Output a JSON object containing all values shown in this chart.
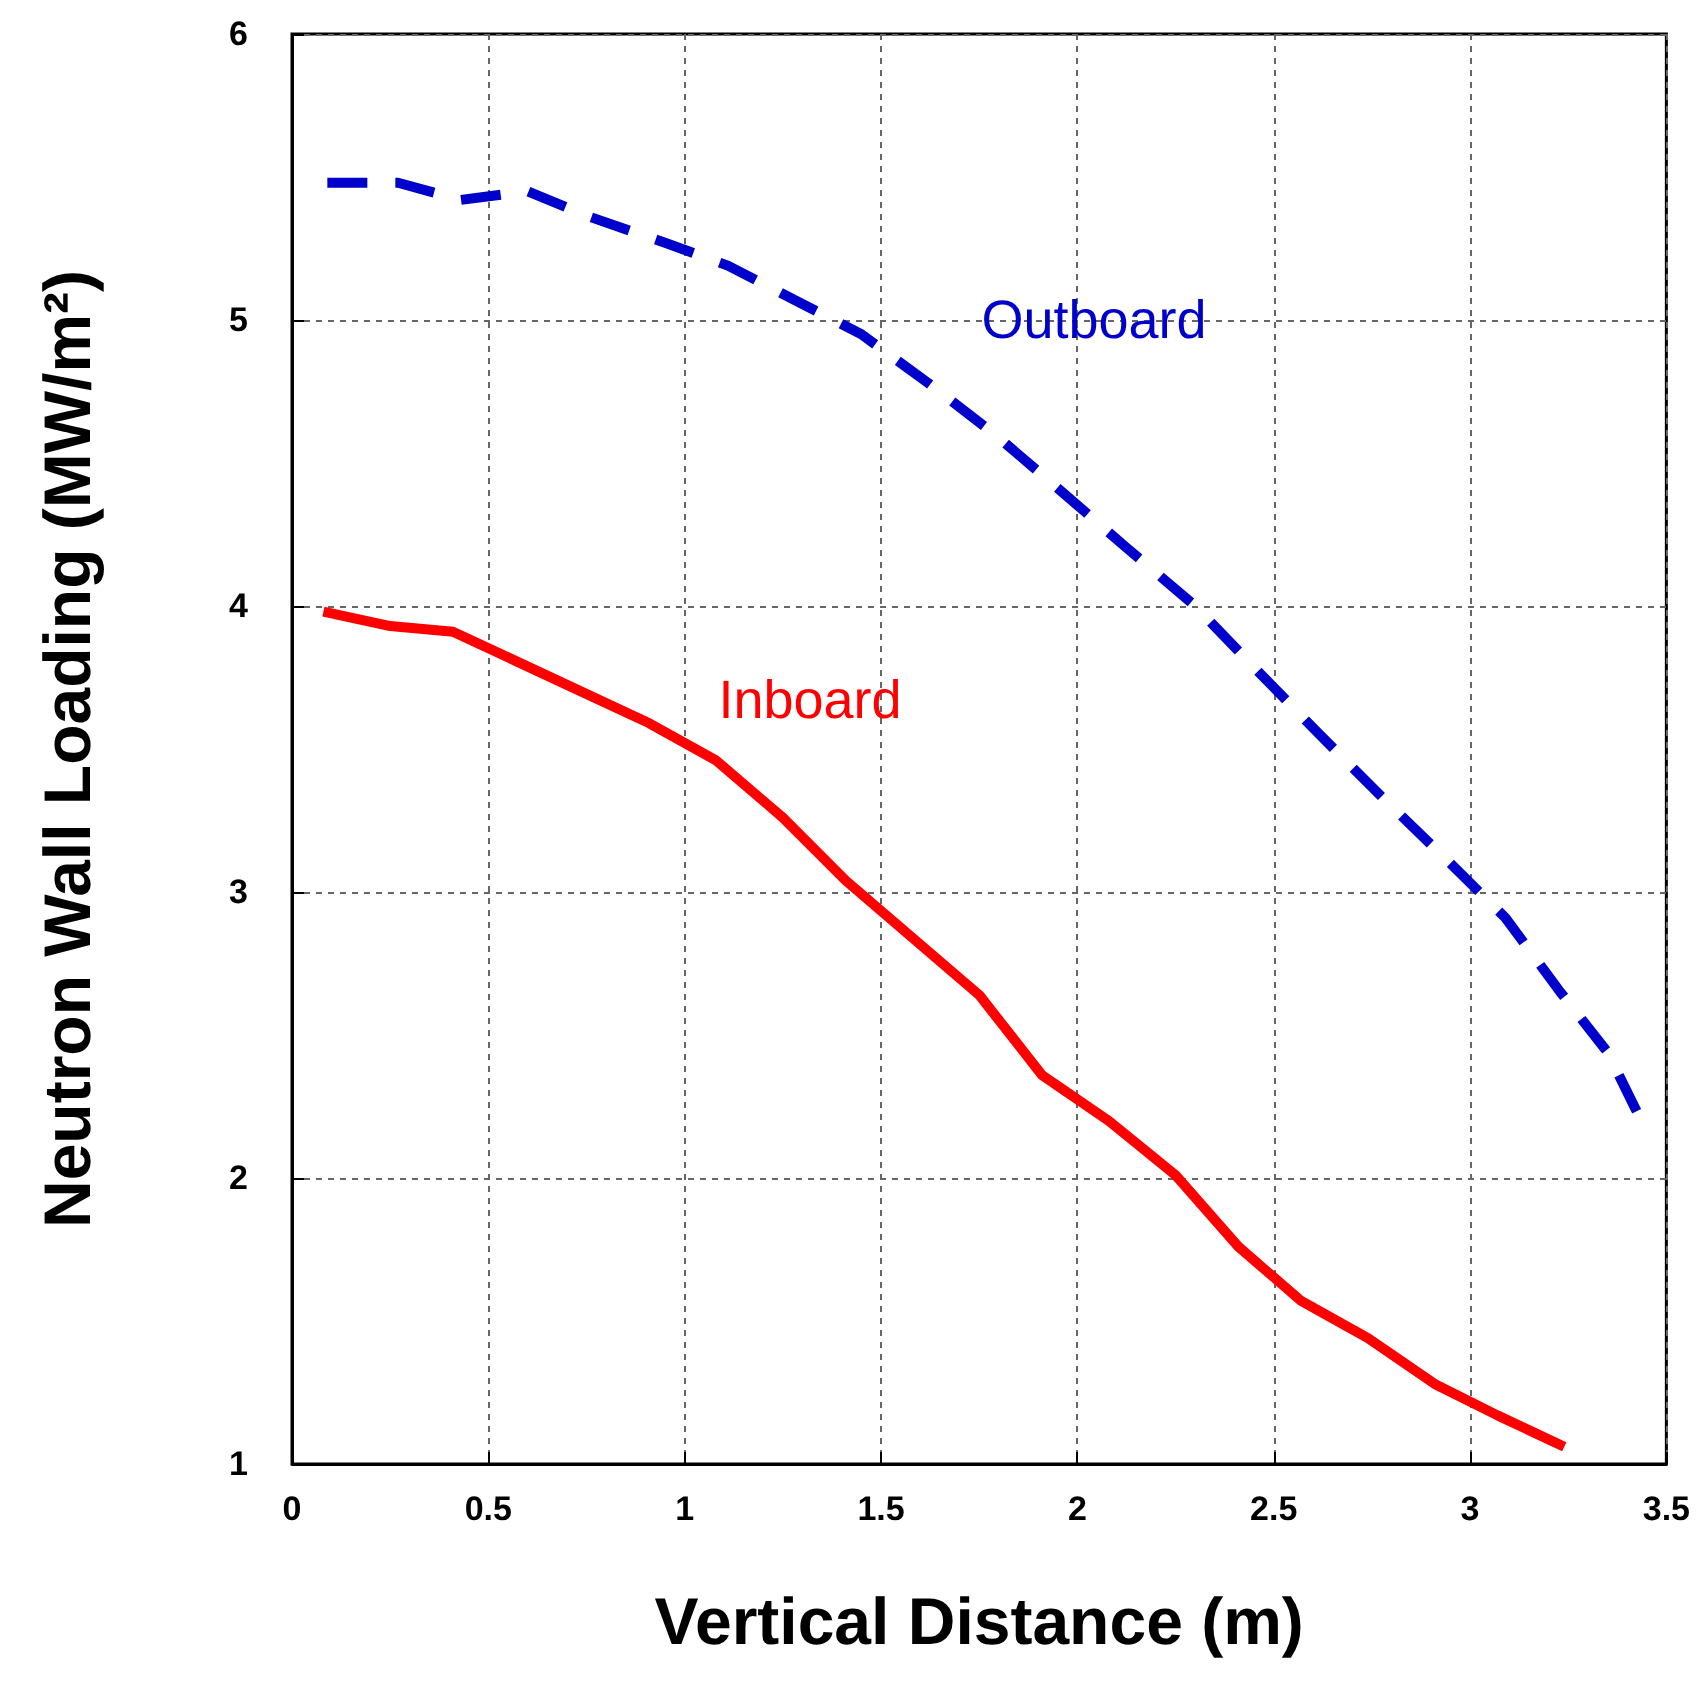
{
  "chart_data": {
    "type": "line",
    "xlabel": "Vertical Distance (m)",
    "ylabel": "Neutron Wall Loading (MW/m²)",
    "x": [
      0.08,
      0.25,
      0.41,
      0.91,
      1.08,
      1.25,
      1.41,
      1.75,
      1.91,
      2.08,
      2.25,
      2.41,
      2.57,
      2.74,
      2.91,
      3.07,
      3.24
    ],
    "series": [
      {
        "name": "Outboard",
        "color": "#0000cc",
        "line_style": "dashed",
        "x": [
          0.09,
          0.27,
          0.43,
          0.6,
          0.76,
          0.95,
          1.11,
          1.28,
          1.45,
          1.62,
          1.79,
          1.96,
          2.12,
          2.3,
          2.44,
          2.61,
          2.77,
          2.95,
          3.09,
          3.23,
          3.35,
          3.44
        ],
        "values": [
          5.48,
          5.48,
          5.42,
          5.45,
          5.36,
          5.27,
          5.19,
          5.07,
          4.95,
          4.78,
          4.6,
          4.4,
          4.21,
          4.0,
          3.8,
          3.56,
          3.34,
          3.1,
          2.91,
          2.65,
          2.44,
          2.19
        ]
      },
      {
        "name": "Inboard",
        "color": "#ff0000",
        "line_style": "solid",
        "values": [
          3.98,
          3.93,
          3.91,
          3.59,
          3.46,
          3.26,
          3.04,
          2.64,
          2.36,
          2.2,
          2.01,
          1.76,
          1.57,
          1.44,
          1.28,
          1.17,
          1.06
        ]
      }
    ],
    "xlim": [
      0,
      3.5
    ],
    "xticks": [
      0,
      0.5,
      1,
      1.5,
      2,
      2.5,
      3,
      3.5
    ],
    "ylim": [
      1,
      6
    ],
    "yticks": [
      1,
      2,
      3,
      4,
      5,
      6
    ],
    "grid": true,
    "marker": "none"
  }
}
